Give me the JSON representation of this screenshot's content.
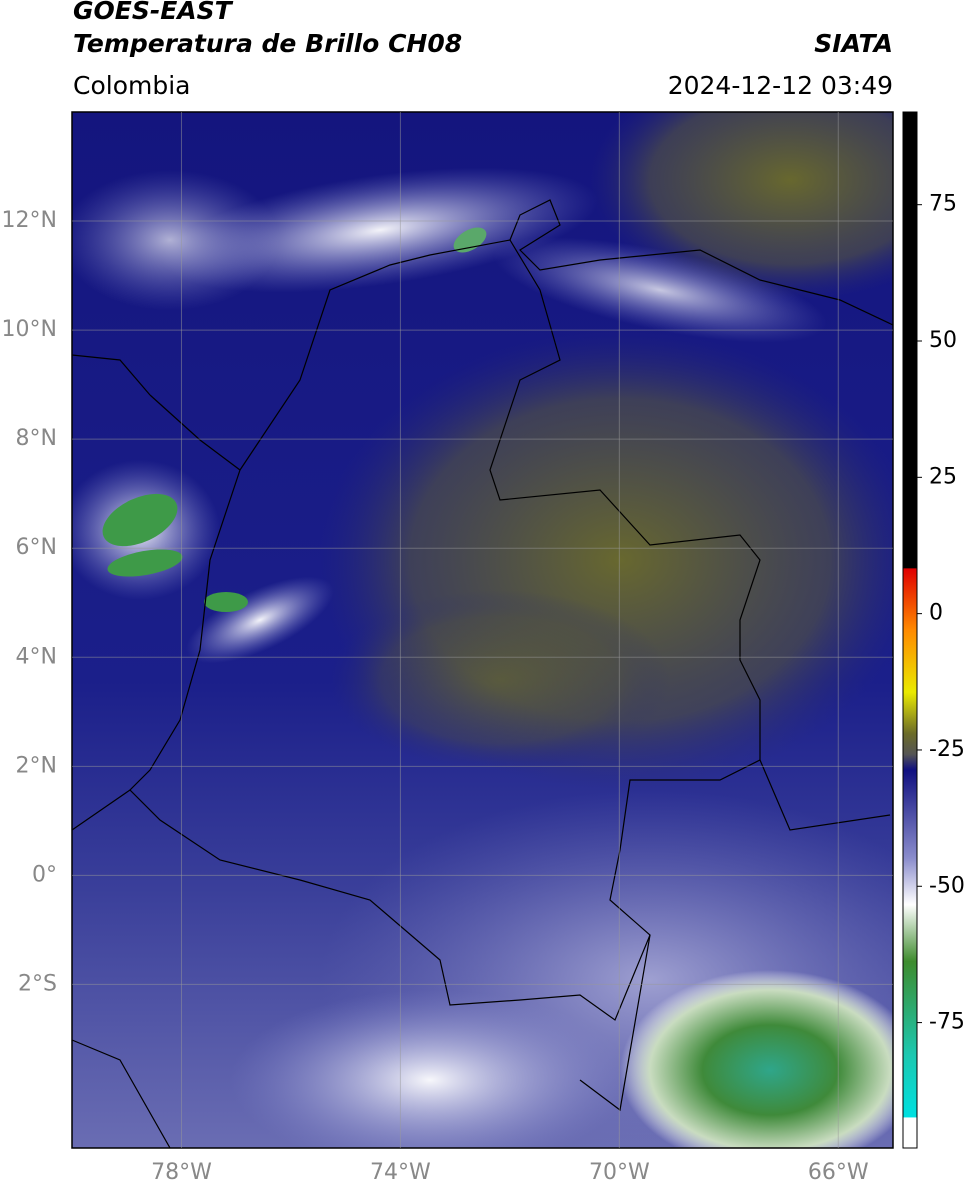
{
  "header": {
    "title": "GOES-EAST",
    "subtitle": "Temperatura de Brillo CH08",
    "region": "Colombia",
    "source": "SIATA",
    "datetime": "2024-12-12 03:49"
  },
  "map": {
    "lonlim": [
      -80,
      -65
    ],
    "latlim": [
      -5,
      14
    ],
    "lonticks": [
      {
        "value": -78,
        "label": "78°W"
      },
      {
        "value": -74,
        "label": "74°W"
      },
      {
        "value": -70,
        "label": "70°W"
      },
      {
        "value": -66,
        "label": "66°W"
      }
    ],
    "latticks": [
      {
        "value": 12,
        "label": "12°N"
      },
      {
        "value": 10,
        "label": "10°N"
      },
      {
        "value": 8,
        "label": "8°N"
      },
      {
        "value": 6,
        "label": "6°N"
      },
      {
        "value": 4,
        "label": "4°N"
      },
      {
        "value": 2,
        "label": "2°N"
      },
      {
        "value": 0,
        "label": "0°"
      },
      {
        "value": -2,
        "label": "2°S"
      }
    ],
    "grid": true
  },
  "colorbar": {
    "lim": [
      -98,
      92
    ],
    "ticks": [
      75,
      50,
      25,
      0,
      -25,
      -50,
      -75
    ]
  }
}
